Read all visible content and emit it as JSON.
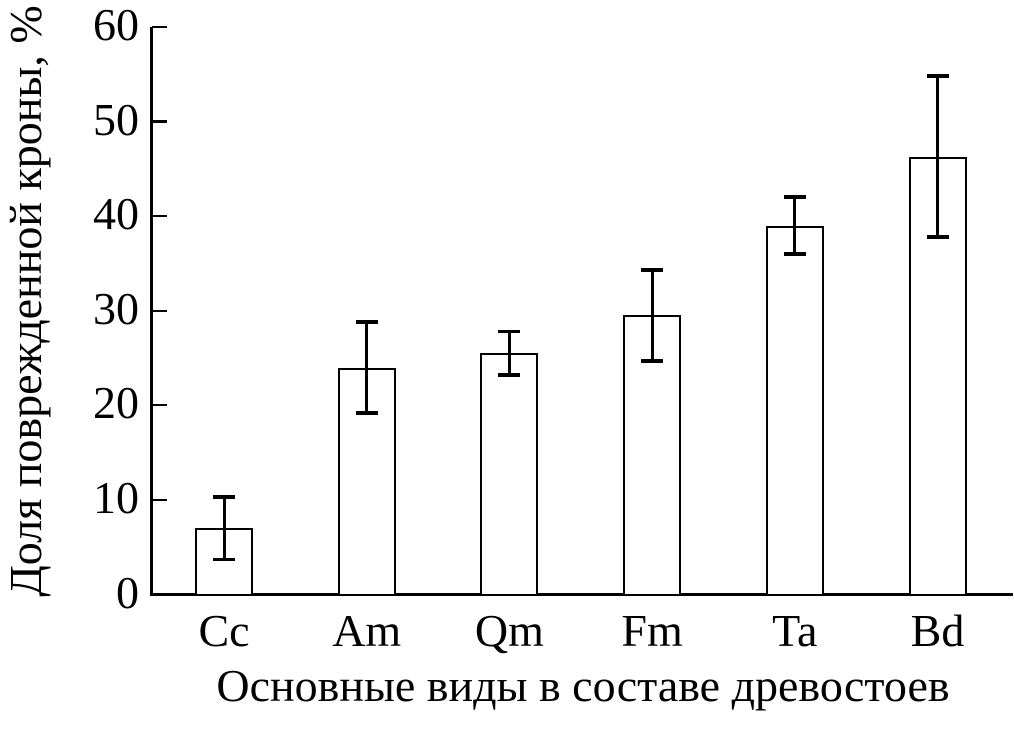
{
  "figure": {
    "background_color": "#ffffff",
    "line_color": "#000000",
    "bar_fill_color": "#ffffff"
  },
  "chart_data": {
    "type": "bar",
    "title": "",
    "xlabel": "Основные виды в составе древостоев",
    "ylabel": "Доля поврежденной кроны, %",
    "categories": [
      "Cc",
      "Am",
      "Qm",
      "Fm",
      "Ta",
      "Bd"
    ],
    "series": [
      {
        "name": "Доля поврежденной кроны, %",
        "values": [
          7,
          24,
          25.5,
          29.5,
          39,
          46.3
        ],
        "errors": [
          3.3,
          4.8,
          2.3,
          4.8,
          3,
          8.5
        ]
      }
    ],
    "ylim": [
      0,
      60
    ],
    "yticks": [
      0,
      10,
      20,
      30,
      40,
      50,
      60
    ],
    "grid": false,
    "legend": null,
    "error_bars": true,
    "bar_fill": "#ffffff",
    "bar_border": "#000000"
  }
}
